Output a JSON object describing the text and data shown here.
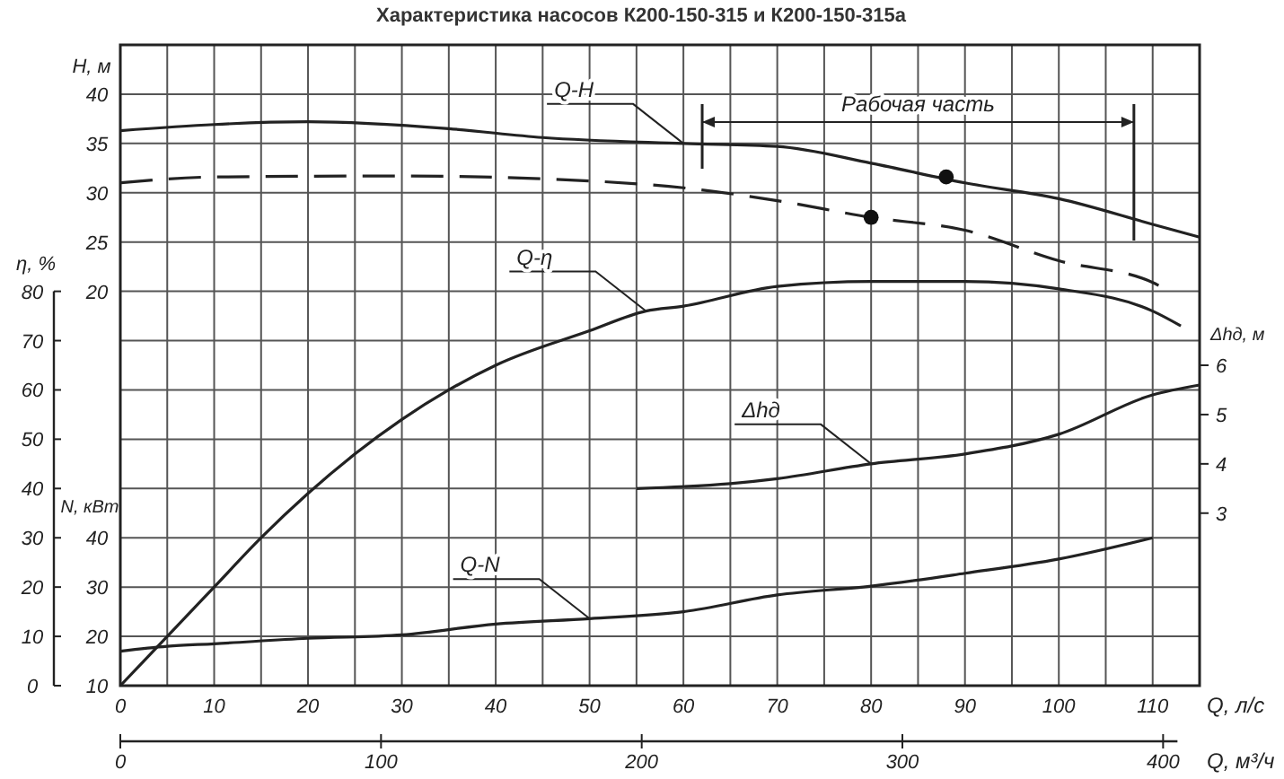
{
  "chart_data": [
    {
      "type": "line",
      "title": "Характеристика насосов К200-150-315 и К200-150-315а",
      "xlabel": "Q, л/с",
      "x2label": "Q, м³/ч",
      "ylabel": "H, м",
      "y2label": "η, %",
      "y3label": "N, кВт",
      "xlim": [
        0,
        115
      ],
      "xticks": [
        0,
        10,
        20,
        30,
        40,
        50,
        60,
        70,
        80,
        90,
        100,
        110
      ],
      "x2lim": [
        0,
        414
      ],
      "x2ticks": [
        0,
        100,
        200,
        300,
        400
      ],
      "ylim": [
        -20,
        45
      ],
      "yticks": [
        20,
        25,
        30,
        35,
        40
      ],
      "y2lim": [
        0,
        130
      ],
      "y2ticks": [
        0,
        10,
        20,
        30,
        40,
        50,
        60,
        70,
        80
      ],
      "y3lim": [
        10,
        140
      ],
      "y3ticks": [
        10,
        20,
        30,
        40
      ],
      "grid": true,
      "ref_lines": [
        {
          "axis": "x",
          "value": 62
        },
        {
          "axis": "x",
          "value": 108
        }
      ],
      "annotations": [
        "Рабочая часть"
      ],
      "series": [
        {
          "name": "Q-H",
          "type": "line",
          "axis": "y",
          "color": "#222222",
          "line_style": "solid",
          "x": [
            0,
            20,
            35,
            45,
            60,
            70,
            80,
            90,
            100,
            110,
            115
          ],
          "values": [
            36.3,
            37.2,
            36.5,
            35.6,
            35.0,
            34.7,
            33.0,
            31.0,
            29.4,
            26.8,
            25.5
          ]
        },
        {
          "type": "line",
          "axis": "y",
          "color": "#222222",
          "line_style": "dashed",
          "x": [
            0,
            10,
            30,
            50,
            60,
            70,
            80,
            90,
            100,
            110,
            112
          ],
          "values": [
            31.0,
            31.6,
            31.7,
            31.2,
            30.5,
            29.2,
            27.5,
            26.2,
            23.1,
            20.9,
            19.8
          ]
        },
        {
          "name": "Q-η",
          "type": "line",
          "axis": "y2",
          "color": "#222222",
          "line_style": "solid",
          "x": [
            0,
            5,
            10,
            15,
            20,
            25,
            30,
            35,
            40,
            50,
            56,
            60,
            70,
            80,
            90,
            100,
            110,
            113
          ],
          "values": [
            0,
            10,
            20,
            30,
            39,
            47,
            54,
            60,
            65,
            72,
            76,
            77,
            81,
            82,
            82,
            80.5,
            76,
            73
          ]
        },
        {
          "name": "Q-N",
          "type": "line",
          "axis": "y3",
          "color": "#222222",
          "line_style": "solid",
          "x": [
            0,
            5,
            10,
            20,
            30,
            40,
            50,
            60,
            70,
            80,
            90,
            100,
            110
          ],
          "values": [
            17,
            18,
            18.5,
            19.6,
            20.3,
            22.5,
            23.6,
            25,
            28.4,
            30.2,
            32.8,
            35.7,
            40
          ]
        },
        {
          "type": "scatter",
          "axis": "y",
          "color": "#111111",
          "marker": "circle",
          "x": [
            88,
            80
          ],
          "values": [
            31.6,
            27.5
          ]
        }
      ]
    },
    {
      "type": "line",
      "ylabel": "Δhд, м",
      "xlim": [
        0,
        115
      ],
      "ylim": [
        -0.5,
        12.5
      ],
      "yticks": [
        3,
        4,
        5,
        6
      ],
      "tick_labels": "y",
      "series": [
        {
          "name": "Δhд",
          "color": "#222222",
          "line_style": "solid",
          "x": [
            55,
            65,
            70,
            80,
            90,
            100,
            110,
            115
          ],
          "values": [
            3.5,
            3.6,
            3.7,
            4.0,
            4.2,
            4.6,
            5.4,
            5.6
          ]
        }
      ]
    }
  ]
}
